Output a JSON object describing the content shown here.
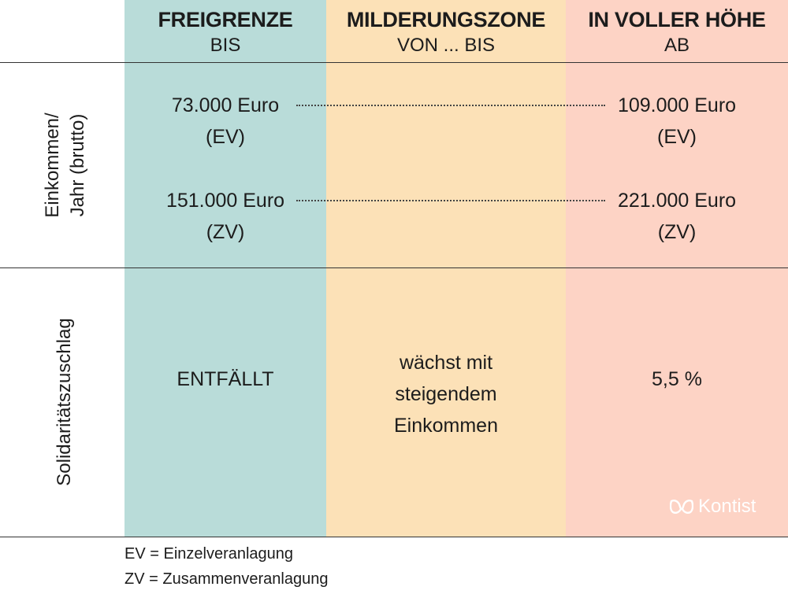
{
  "header": {
    "col1": {
      "title": "FREIGRENZE",
      "sub": "BIS"
    },
    "col2": {
      "title": "MILDERUNGSZONE",
      "sub": "VON ... BIS"
    },
    "col3": {
      "title": "IN VOLLER HÖHE",
      "sub": "AB"
    }
  },
  "rows": {
    "income": {
      "label_line1": "Einkommen/",
      "label_line2": "Jahr (brutto)",
      "ev_from": "73.000 Euro",
      "ev_from_tag": "(EV)",
      "ev_to": "109.000 Euro",
      "ev_to_tag": "(EV)",
      "zv_from": "151.000 Euro",
      "zv_from_tag": "(ZV)",
      "zv_to": "221.000 Euro",
      "zv_to_tag": "(ZV)"
    },
    "soli": {
      "label": "Solidaritätszuschlag",
      "col1": "ENTFÄLLT",
      "col2_line1": "wächst mit",
      "col2_line2": "steigendem",
      "col2_line3": "Einkommen",
      "col3": "5,5 %"
    }
  },
  "legend": {
    "ev": "EV = Einzelveranlagung",
    "zv": "ZV = Zusammenveranlagung"
  },
  "brand": {
    "name": "Kontist",
    "icon": "kontist-logo-icon"
  },
  "colors": {
    "freigrenze": "#b9dcd9",
    "milderungszone": "#fce1b7",
    "volle_hoehe": "#fdd3c5"
  }
}
